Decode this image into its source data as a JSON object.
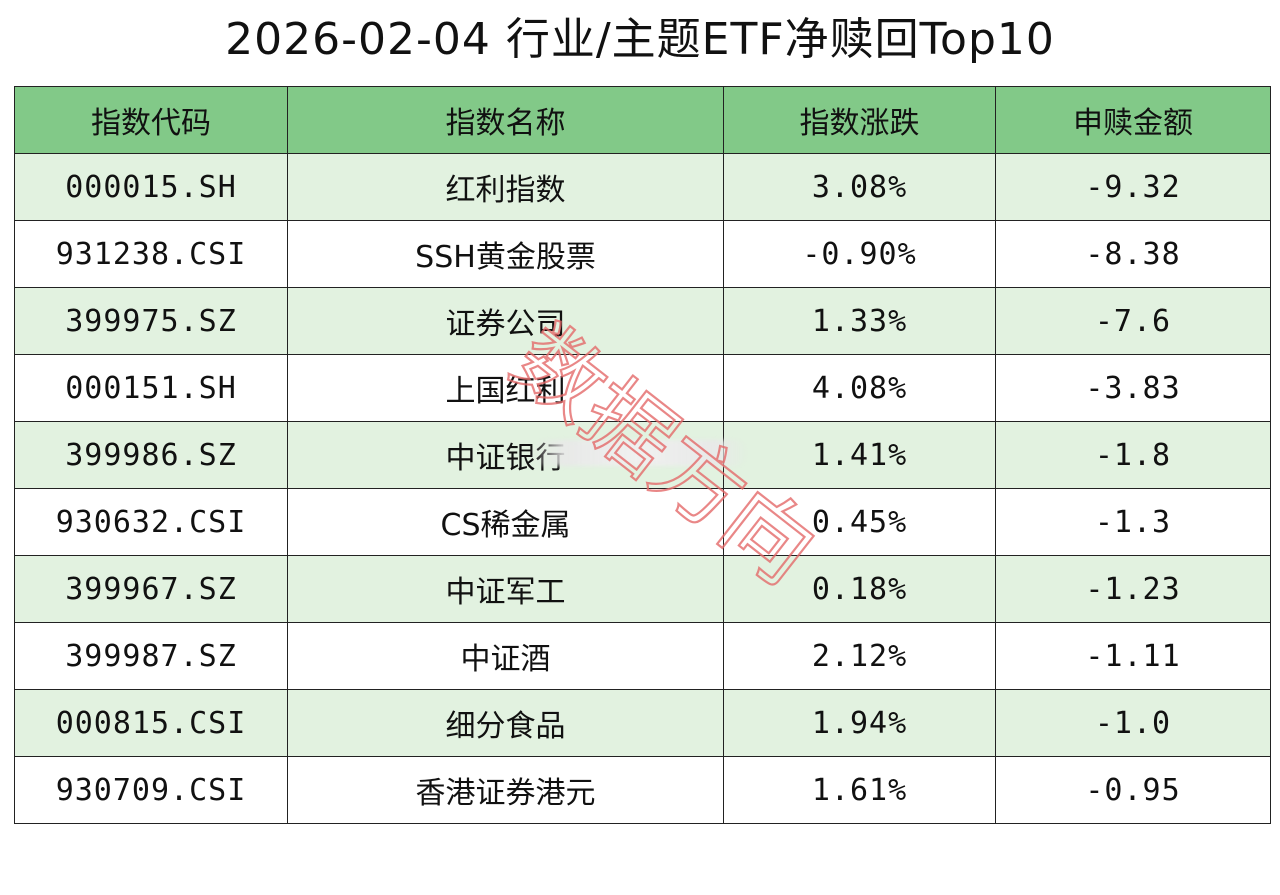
{
  "title": "2026-02-04 行业/主题ETF净赎回Top10",
  "chart_data": {
    "type": "table",
    "title": "2026-02-04 行业/主题ETF净赎回Top10",
    "columns": [
      "指数代码",
      "指数名称",
      "指数涨跌",
      "申赎金额"
    ],
    "rows": [
      {
        "code": "000015.SH",
        "name": "红利指数",
        "change": "3.08%",
        "amount": "-9.32"
      },
      {
        "code": "931238.CSI",
        "name": "SSH黄金股票",
        "change": "-0.90%",
        "amount": "-8.38"
      },
      {
        "code": "399975.SZ",
        "name": "证券公司",
        "change": "1.33%",
        "amount": "-7.6"
      },
      {
        "code": "000151.SH",
        "name": "上国红利",
        "change": "4.08%",
        "amount": "-3.83"
      },
      {
        "code": "399986.SZ",
        "name": "中证银行",
        "change": "1.41%",
        "amount": "-1.8"
      },
      {
        "code": "930632.CSI",
        "name": "CS稀金属",
        "change": "0.45%",
        "amount": "-1.3"
      },
      {
        "code": "399967.SZ",
        "name": "中证军工",
        "change": "0.18%",
        "amount": "-1.23"
      },
      {
        "code": "399987.SZ",
        "name": "中证酒",
        "change": "2.12%",
        "amount": "-1.11"
      },
      {
        "code": "000815.CSI",
        "name": "细分食品",
        "change": "1.94%",
        "amount": "-1.0"
      },
      {
        "code": "930709.CSI",
        "name": "香港证券港元",
        "change": "1.61%",
        "amount": "-0.95"
      }
    ]
  },
  "watermark": {
    "text": "数据方向",
    "color": "#e46a6a"
  },
  "colors": {
    "header_bg": "#82c988",
    "row_alt_bg": "#e2f2e0",
    "border": "#222222"
  }
}
